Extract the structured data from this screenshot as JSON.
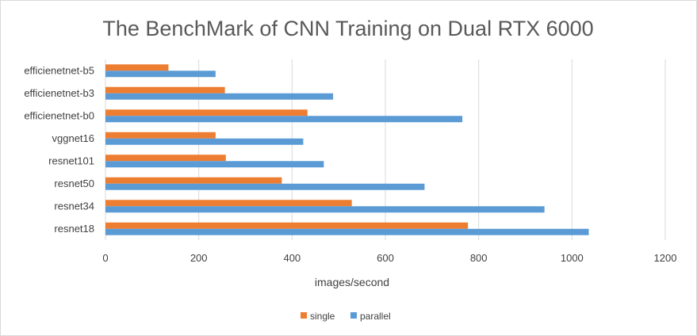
{
  "chart_data": {
    "type": "bar",
    "orientation": "horizontal",
    "title": "The BenchMark of CNN Training on Dual RTX 6000",
    "xlabel": "images/second",
    "ylabel": "",
    "xlim": [
      0,
      1200
    ],
    "xticks": [
      "0",
      "200",
      "400",
      "600",
      "800",
      "1000",
      "1200"
    ],
    "grid": "vertical",
    "legend_position": "bottom",
    "categories": [
      "efficienetnet-b5",
      "efficienetnet-b3",
      "efficienetnet-b0",
      "vggnet16",
      "resnet101",
      "resnet50",
      "resnet34",
      "resnet18"
    ],
    "series": [
      {
        "name": "single",
        "color": "#ed7d31",
        "values": [
          135,
          256,
          433,
          236,
          258,
          378,
          528,
          777
        ]
      },
      {
        "name": "parallel",
        "color": "#5b9bd5",
        "values": [
          236,
          488,
          765,
          424,
          468,
          684,
          941,
          1036
        ]
      }
    ]
  }
}
